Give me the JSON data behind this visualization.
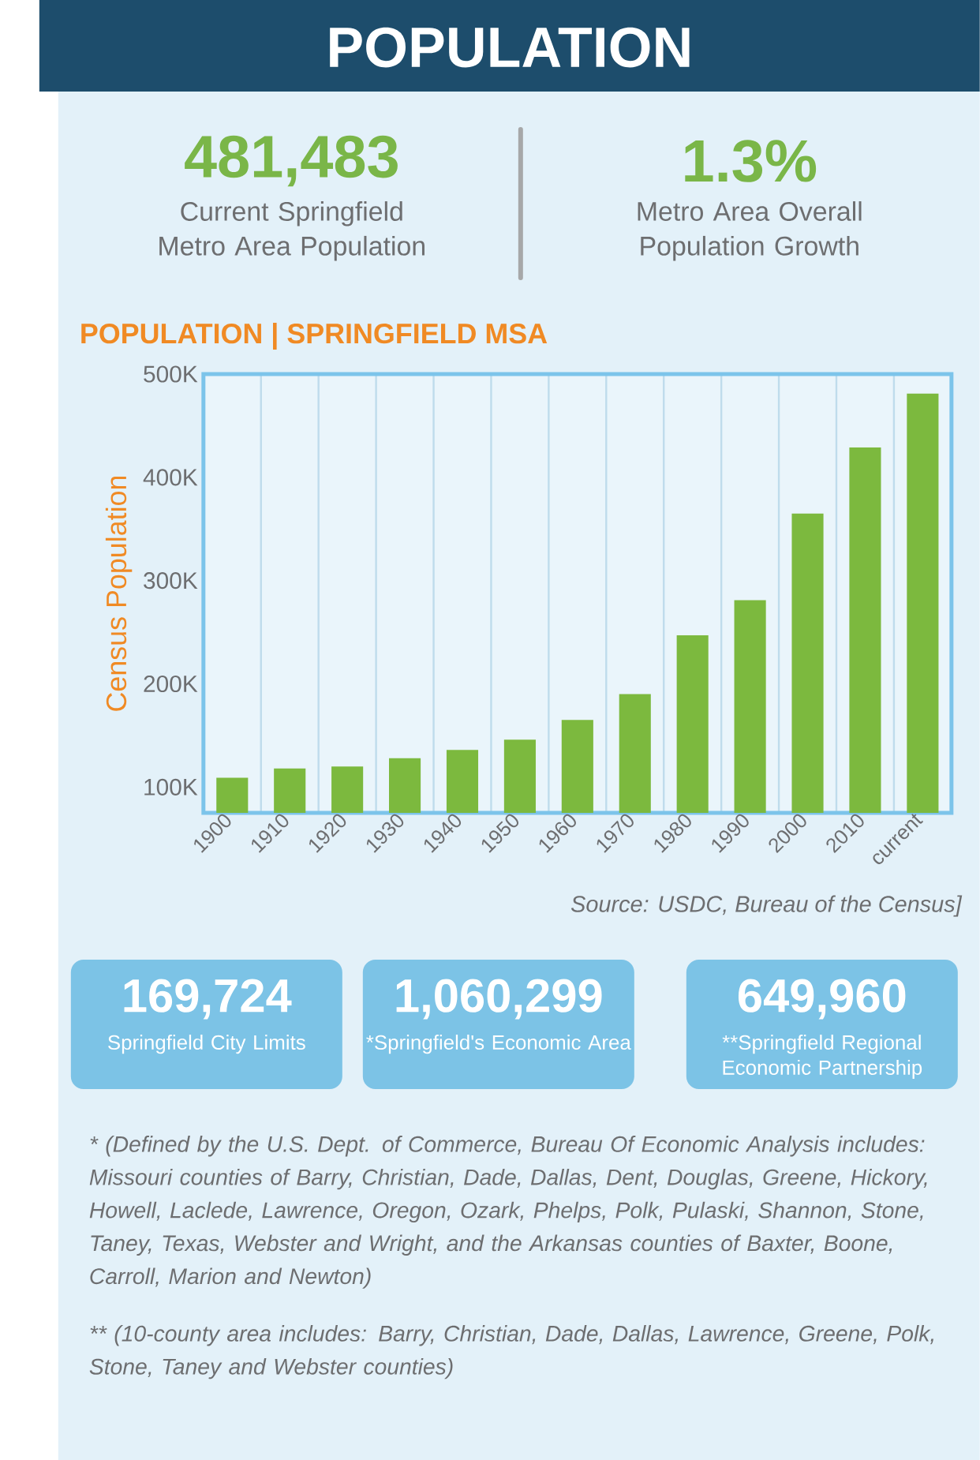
{
  "chart_data": [
    {
      "type": "other",
      "title": "POPULATION",
      "annotations": [
        "481,483",
        "Current Springfield Metro Area Population",
        "1.3%",
        "Metro Area Overall Population Growth"
      ]
    },
    {
      "type": "bar",
      "title": "POPULATION | SPRINGFIELD MSA",
      "ylabel": "Census Population",
      "categories": [
        "1900",
        "1910",
        "1920",
        "1930",
        "1940",
        "1950",
        "1960",
        "1970",
        "1980",
        "1990",
        "2000",
        "2010",
        "current"
      ],
      "values": [
        109000,
        118000,
        120000,
        128000,
        136000,
        146000,
        165000,
        190000,
        247000,
        281000,
        365000,
        429000,
        481000
      ],
      "color": "#7cb93e",
      "ylim": [
        75000,
        500000
      ],
      "yticks": [
        {
          "value": 100000,
          "label": "100K"
        },
        {
          "value": 200000,
          "label": "200K"
        },
        {
          "value": 300000,
          "label": "300K"
        },
        {
          "value": 400000,
          "label": "400K"
        },
        {
          "value": 500000,
          "label": "500K"
        }
      ],
      "grid": "x",
      "annotations": [
        "Source: USDC, Bureau of the Census]"
      ]
    },
    {
      "type": "other",
      "annotations": [
        "169,724",
        "Springfield City Limits",
        "1,060,299",
        "*Springfield's Economic Area",
        "649,960",
        "**Springfield Regional Economic Partnership",
        "* (Defined by the U.S. Dept. of Commerce, Bureau Of Economic Analysis includes: Missouri counties of Barry, Christian, Dade, Dallas, Dent, Douglas, Greene, Hickory, Howell, Laclede, Lawrence, Oregon, Ozark, Phelps, Polk, Pulaski, Shannon, Stone, Taney, Texas, Webster and Wright, and the Arkansas counties of Baxter, Boone, Carroll, Marion and Newton)",
        "** (10-county area includes: Barry, Christian, Dade, Dallas, Lawrence, Greene, Polk, Stone, Taney and Webster counties)"
      ]
    }
  ]
}
